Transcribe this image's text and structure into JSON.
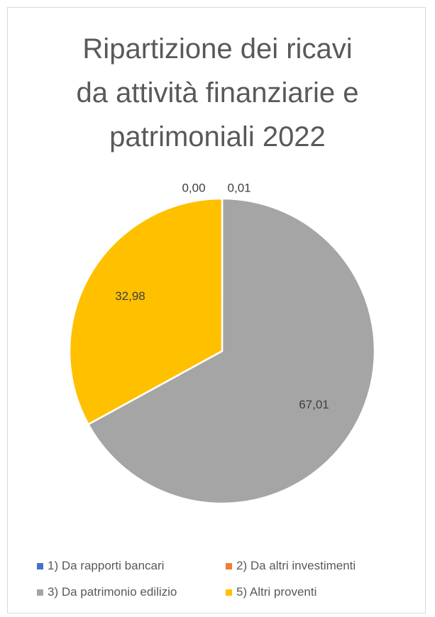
{
  "chart_data": {
    "type": "pie",
    "title": "Ripartizione dei ricavi da attività finanziarie e patrimoniali 2022",
    "title_lines": [
      "Ripartizione dei ricavi",
      "da attività finanziarie e",
      "patrimoniali 2022"
    ],
    "start_angle_deg": 0,
    "direction": "clockwise",
    "slices": [
      {
        "name": "1) Da rapporti bancari",
        "value": 0.01,
        "label": "0,01",
        "color": "#4472c4"
      },
      {
        "name": "3) Da patrimonio edilizio",
        "value": 67.01,
        "label": "67,01",
        "color": "#a5a5a5"
      },
      {
        "name": "5) Altri proventi",
        "value": 32.98,
        "label": "32,98",
        "color": "#ffc000"
      },
      {
        "name": "2) Da altri investimenti",
        "value": 0.0,
        "label": "0,00",
        "color": "#ed7d31"
      }
    ],
    "legend": {
      "placement": "bottom",
      "rows": [
        [
          {
            "name": "1) Da rapporti bancari",
            "color": "#4472c4"
          },
          {
            "name": "2) Da altri investimenti",
            "color": "#ed7d31"
          }
        ],
        [
          {
            "name": "3) Da patrimonio edilizio",
            "color": "#a5a5a5"
          },
          {
            "name": "5) Altri proventi",
            "color": "#ffc000"
          }
        ]
      ]
    }
  }
}
